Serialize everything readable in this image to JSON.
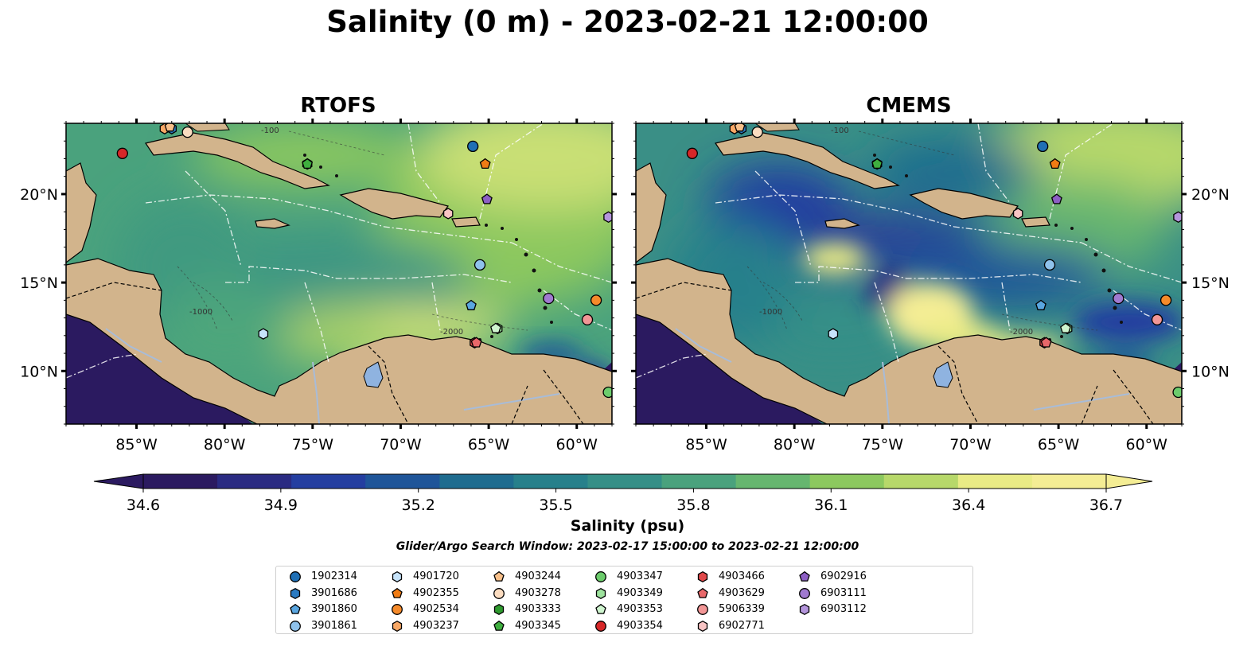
{
  "title": "Salinity (0 m) - 2023-02-21 12:00:00",
  "panels": [
    {
      "title": "RTOFS",
      "variant": "rtofs"
    },
    {
      "title": "CMEMS",
      "variant": "cmems"
    }
  ],
  "axes": {
    "lon_ticks": [
      "85°W",
      "80°W",
      "75°W",
      "70°W",
      "65°W",
      "60°W"
    ],
    "lat_ticks": [
      "20°N",
      "15°N",
      "10°N"
    ],
    "lon_values": [
      -85,
      -80,
      -75,
      -70,
      -65,
      -60
    ],
    "lat_values": [
      20,
      15,
      10
    ],
    "lon_range": [
      -89,
      -58
    ],
    "lat_range": [
      7,
      24
    ]
  },
  "colorbar": {
    "label": "Salinity (psu)",
    "ticks": [
      "34.6",
      "34.9",
      "35.2",
      "35.5",
      "35.8",
      "36.1",
      "36.4",
      "36.7"
    ],
    "min": 34.6,
    "max": 36.7,
    "colors": [
      "#2b1a60",
      "#2a2b82",
      "#243ea0",
      "#1f5599",
      "#1f6c8f",
      "#27808b",
      "#358f87",
      "#4aa27d",
      "#66b66f",
      "#8cc85f",
      "#b7d86a",
      "#e9eb85",
      "#f4ed94"
    ],
    "extend": "both"
  },
  "search_window": "Glider/Argo Search Window: 2023-02-17 15:00:00 to 2023-02-21 12:00:00",
  "map_colors": {
    "land": "#d2b48c",
    "deep": "#2d1a5e",
    "lake": "#8fb3e0",
    "river": "#a8bcd8"
  },
  "contour_labels": [
    "-100",
    "-1000",
    "-2000"
  ],
  "floats": [
    {
      "id": "1902314",
      "marker": "circle",
      "color": "#1f6fb5",
      "lon": -65.9,
      "lat": 22.7
    },
    {
      "id": "3901686",
      "marker": "hexagon",
      "color": "#2b7bc2",
      "lon": -83.0,
      "lat": 23.7
    },
    {
      "id": "3901860",
      "marker": "pentagon",
      "color": "#5aa6e0",
      "lon": -66.0,
      "lat": 13.7
    },
    {
      "id": "3901861",
      "marker": "circle",
      "color": "#8fc2ec",
      "lon": -65.5,
      "lat": 16.0
    },
    {
      "id": "4901720",
      "marker": "hexagon",
      "color": "#c6e3fa",
      "lon": -77.8,
      "lat": 12.1
    },
    {
      "id": "4902355",
      "marker": "pentagon",
      "color": "#f07c14",
      "lon": -65.2,
      "lat": 21.7
    },
    {
      "id": "4902534",
      "marker": "circle",
      "color": "#f58a2a",
      "lon": -58.9,
      "lat": 14.0
    },
    {
      "id": "4903237",
      "marker": "hexagon",
      "color": "#f8a866",
      "lon": -83.4,
      "lat": 23.7
    },
    {
      "id": "4903244",
      "marker": "pentagon",
      "color": "#f8c08a",
      "lon": -83.1,
      "lat": 23.8
    },
    {
      "id": "4903278",
      "marker": "circle",
      "color": "#fbdcc0",
      "lon": -82.1,
      "lat": 23.5
    },
    {
      "id": "4903333",
      "marker": "hexagon",
      "color": "#2e9a2e",
      "lon": -75.3,
      "lat": 21.7
    },
    {
      "id": "4903345",
      "marker": "pentagon",
      "color": "#3fae3f",
      "lon": -75.3,
      "lat": 21.7
    },
    {
      "id": "4903347",
      "marker": "circle",
      "color": "#6ccc6c",
      "lon": -58.2,
      "lat": 8.8
    },
    {
      "id": "4903349",
      "marker": "hexagon",
      "color": "#9ee39e",
      "lon": -64.5,
      "lat": 12.4
    },
    {
      "id": "4903353",
      "marker": "pentagon",
      "color": "#cff5cf",
      "lon": -64.6,
      "lat": 12.4
    },
    {
      "id": "4903354",
      "marker": "circle",
      "color": "#d62728",
      "lon": -85.8,
      "lat": 22.3
    },
    {
      "id": "4903466",
      "marker": "hexagon",
      "color": "#e0484a",
      "lon": -65.8,
      "lat": 11.6
    },
    {
      "id": "4903629",
      "marker": "pentagon",
      "color": "#e8686a",
      "lon": -65.7,
      "lat": 11.6
    },
    {
      "id": "5906339",
      "marker": "circle",
      "color": "#f29696",
      "lon": -59.4,
      "lat": 12.9
    },
    {
      "id": "6902771",
      "marker": "hexagon",
      "color": "#f8c4c4",
      "lon": -67.3,
      "lat": 18.9
    },
    {
      "id": "6902916",
      "marker": "pentagon",
      "color": "#8d5fc4",
      "lon": -65.1,
      "lat": 19.7
    },
    {
      "id": "6903111",
      "marker": "circle",
      "color": "#a07ad0",
      "lon": -61.6,
      "lat": 14.1
    },
    {
      "id": "6903112",
      "marker": "hexagon",
      "color": "#b495dc",
      "lon": -58.2,
      "lat": 18.7
    }
  ]
}
